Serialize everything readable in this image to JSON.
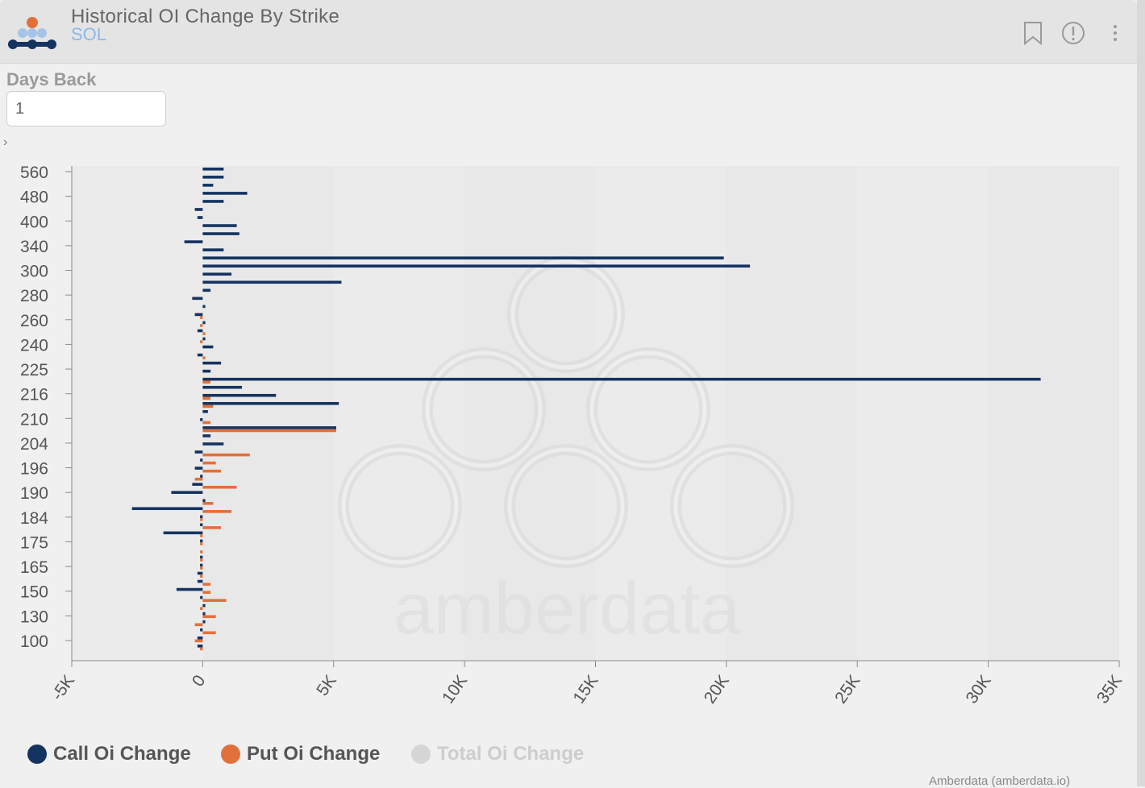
{
  "header": {
    "title": "Historical OI Change By Strike",
    "subtitle": "SOL"
  },
  "controls": {
    "days_back_label": "Days Back",
    "days_back_value": "1",
    "expand_glyph": "›"
  },
  "icons": [
    "amberdata-logo",
    "bookmark-icon",
    "info-icon",
    "more-vert-icon",
    "chevron-right-icon"
  ],
  "colors": {
    "call": "#153361",
    "put": "#e2703a",
    "total_disabled": "#d6d6d6",
    "subtitle": "#8fb7e6"
  },
  "watermark": "amberdata",
  "footer": "Amberdata (amberdata.io)",
  "chart_data": {
    "type": "bar",
    "orientation": "horizontal",
    "y_tick_labels": [
      "560",
      "480",
      "400",
      "340",
      "300",
      "280",
      "260",
      "240",
      "225",
      "216",
      "210",
      "204",
      "196",
      "190",
      "184",
      "175",
      "165",
      "150",
      "130",
      "100"
    ],
    "x_ticks": [
      -5000,
      0,
      5000,
      10000,
      15000,
      20000,
      25000,
      30000,
      35000
    ],
    "x_tick_labels": [
      "-5K",
      "0",
      "5K",
      "10K",
      "15K",
      "20K",
      "25K",
      "30K",
      "35K"
    ],
    "xlim": [
      -5000,
      35000
    ],
    "grid": "alternating vertical bands",
    "legend": [
      {
        "name": "Call Oi Change",
        "color": "#153361",
        "visible": true
      },
      {
        "name": "Put Oi Change",
        "color": "#e2703a",
        "visible": true
      },
      {
        "name": "Total Oi Change",
        "color": "#d6d6d6",
        "visible": false
      }
    ],
    "series": [
      {
        "name": "Call Oi Change",
        "values": [
          800,
          800,
          400,
          1700,
          800,
          -300,
          -200,
          1300,
          1400,
          -700,
          800,
          19900,
          20900,
          1100,
          5300,
          300,
          -400,
          100,
          -300,
          100,
          -200,
          100,
          400,
          -200,
          700,
          300,
          32000,
          1500,
          2800,
          5200,
          200,
          -100,
          5100,
          300,
          800,
          -300,
          -100,
          -300,
          -100,
          -400,
          -1200,
          100,
          -2700,
          -100,
          -100,
          -1500,
          -100,
          0,
          -100,
          -100,
          -200,
          -200,
          -1000,
          -100,
          100,
          100,
          100,
          -100,
          -200,
          -200
        ]
      },
      {
        "name": "Put Oi Change",
        "values": [
          0,
          0,
          0,
          0,
          0,
          0,
          0,
          0,
          0,
          0,
          0,
          0,
          0,
          0,
          0,
          0,
          0,
          0,
          -100,
          -100,
          100,
          -100,
          0,
          100,
          0,
          0,
          300,
          0,
          300,
          400,
          0,
          300,
          5100,
          0,
          0,
          1800,
          500,
          700,
          -300,
          1300,
          0,
          400,
          1100,
          -100,
          700,
          -100,
          -100,
          -100,
          -100,
          -100,
          -100,
          300,
          300,
          900,
          -100,
          500,
          -300,
          500,
          -300,
          -100
        ]
      }
    ]
  }
}
